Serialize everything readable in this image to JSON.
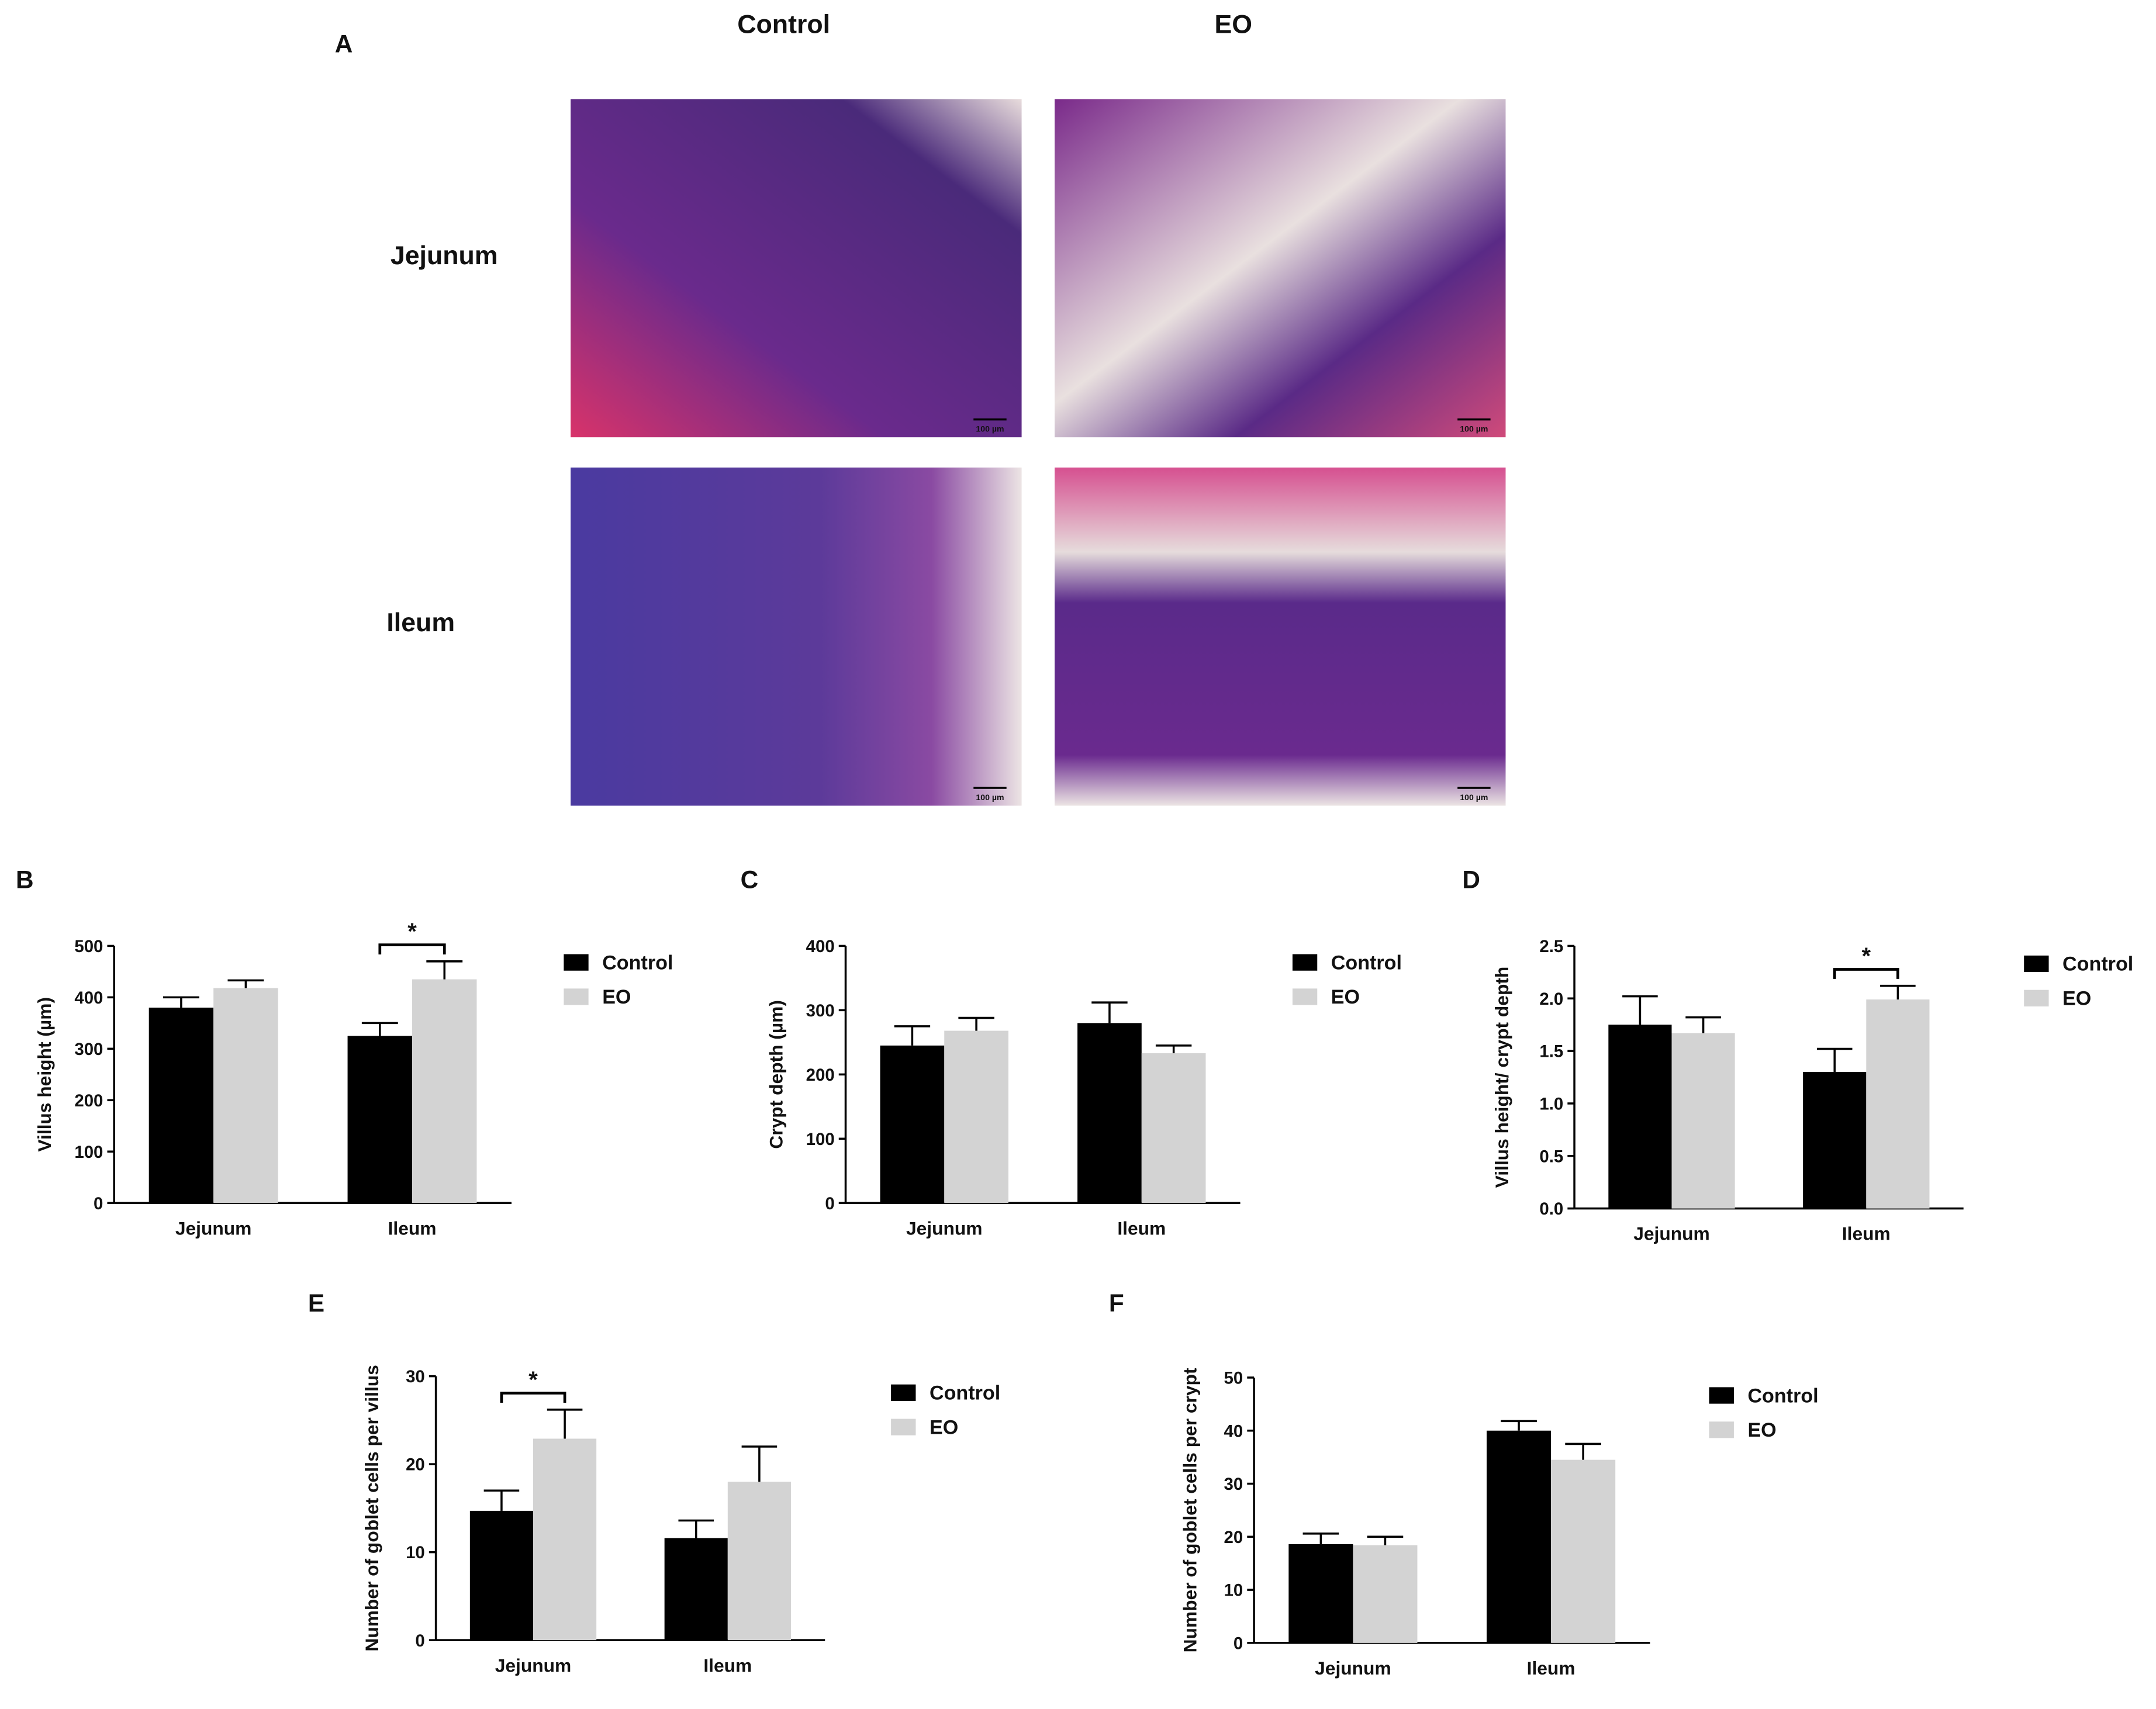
{
  "panel_a": {
    "panel": "A",
    "columns": [
      "Control",
      "EO"
    ],
    "rows": [
      "Jejunum",
      "Ileum"
    ],
    "scale_bar": "100 µm"
  },
  "chart_data": [
    {
      "type": "bar",
      "panel": "B",
      "y_label": "Villus height (µm)",
      "categories": [
        "Jejunum",
        "Ileum"
      ],
      "series": [
        {
          "name": "Control",
          "color": "#000000",
          "values": [
            380,
            325
          ],
          "errors": [
            20,
            25
          ]
        },
        {
          "name": "EO",
          "color": "#d3d3d3",
          "values": [
            418,
            435
          ],
          "errors": [
            15,
            35
          ]
        }
      ],
      "ylim": [
        0,
        500
      ],
      "yticks": [
        0,
        100,
        200,
        300,
        400,
        500
      ],
      "annotations": [
        {
          "label": "*",
          "category": "Ileum"
        }
      ]
    },
    {
      "type": "bar",
      "panel": "C",
      "y_label": "Crypt depth (µm)",
      "categories": [
        "Jejunum",
        "Ileum"
      ],
      "series": [
        {
          "name": "Control",
          "color": "#000000",
          "values": [
            245,
            280
          ],
          "errors": [
            30,
            32
          ]
        },
        {
          "name": "EO",
          "color": "#d3d3d3",
          "values": [
            268,
            233
          ],
          "errors": [
            20,
            12
          ]
        }
      ],
      "ylim": [
        0,
        400
      ],
      "yticks": [
        0,
        100,
        200,
        300,
        400
      ],
      "annotations": []
    },
    {
      "type": "bar",
      "panel": "D",
      "y_label": "Villus height/ crypt depth",
      "categories": [
        "Jejunum",
        "Ileum"
      ],
      "series": [
        {
          "name": "Control",
          "color": "#000000",
          "values": [
            1.75,
            1.3
          ],
          "errors": [
            0.27,
            0.22
          ]
        },
        {
          "name": "EO",
          "color": "#d3d3d3",
          "values": [
            1.67,
            1.99
          ],
          "errors": [
            0.15,
            0.13
          ]
        }
      ],
      "ylim": [
        0,
        2.5
      ],
      "yticks": [
        {
          "value": 0,
          "label": "0.0"
        },
        0.5,
        {
          "value": 1,
          "label": "1.0"
        },
        1.5,
        {
          "value": 2,
          "label": "2.0"
        },
        2.5
      ],
      "annotations": [
        {
          "label": "*",
          "category": "Ileum"
        }
      ]
    },
    {
      "type": "bar",
      "panel": "E",
      "y_label": "Number of goblet cells per villus",
      "categories": [
        "Jejunum",
        "Ileum"
      ],
      "series": [
        {
          "name": "Control",
          "color": "#000000",
          "values": [
            14.7,
            11.6
          ],
          "errors": [
            2.3,
            2
          ]
        },
        {
          "name": "EO",
          "color": "#d3d3d3",
          "values": [
            22.9,
            18
          ],
          "errors": [
            3.3,
            4
          ]
        }
      ],
      "ylim": [
        0,
        30
      ],
      "yticks": [
        0,
        10,
        20,
        30
      ],
      "annotations": [
        {
          "label": "*",
          "category": "Jejunum"
        }
      ]
    },
    {
      "type": "bar",
      "panel": "F",
      "y_label": "Number of goblet cells per crypt",
      "categories": [
        "Jejunum",
        "Ileum"
      ],
      "series": [
        {
          "name": "Control",
          "color": "#000000",
          "values": [
            18.6,
            40
          ],
          "errors": [
            2,
            1.8
          ]
        },
        {
          "name": "EO",
          "color": "#d3d3d3",
          "values": [
            18.4,
            34.5
          ],
          "errors": [
            1.6,
            3
          ]
        }
      ],
      "ylim": [
        0,
        50
      ],
      "yticks": [
        0,
        10,
        20,
        30,
        40,
        50
      ],
      "annotations": []
    }
  ]
}
